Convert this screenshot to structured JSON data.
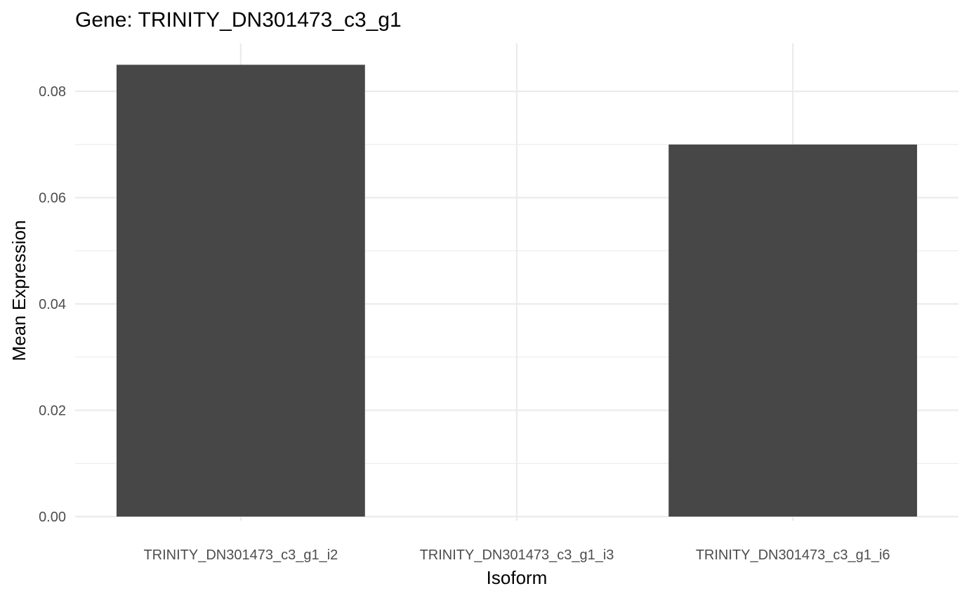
{
  "chart_data": {
    "type": "bar",
    "title": "Gene: TRINITY_DN301473_c3_g1",
    "xlabel": "Isoform",
    "ylabel": "Mean Expression",
    "categories": [
      "TRINITY_DN301473_c3_g1_i2",
      "TRINITY_DN301473_c3_g1_i3",
      "TRINITY_DN301473_c3_g1_i6"
    ],
    "values": [
      0.085,
      0.0,
      0.07
    ],
    "ylim": [
      0,
      0.089
    ],
    "yticks": [
      "0.00",
      "0.02",
      "0.04",
      "0.06",
      "0.08"
    ],
    "grid": true,
    "legend": "none",
    "bar_color": "#474747"
  }
}
